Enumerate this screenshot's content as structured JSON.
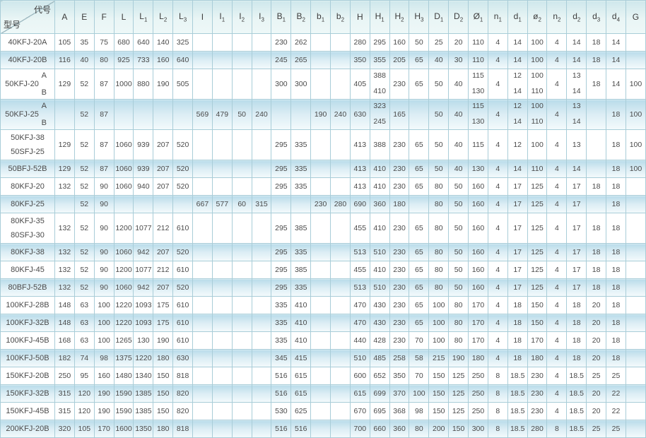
{
  "table": {
    "corner": {
      "top_label": "代号",
      "bottom_label": "型号"
    },
    "columns": [
      {
        "id": "A",
        "b": "A",
        "s": ""
      },
      {
        "id": "E",
        "b": "E",
        "s": ""
      },
      {
        "id": "F",
        "b": "F",
        "s": ""
      },
      {
        "id": "L",
        "b": "L",
        "s": ""
      },
      {
        "id": "L1",
        "b": "L",
        "s": "1"
      },
      {
        "id": "L2",
        "b": "L",
        "s": "2"
      },
      {
        "id": "L3",
        "b": "L",
        "s": "3"
      },
      {
        "id": "I",
        "b": "I",
        "s": ""
      },
      {
        "id": "I1",
        "b": "I",
        "s": "1"
      },
      {
        "id": "I2",
        "b": "I",
        "s": "2"
      },
      {
        "id": "I3",
        "b": "I",
        "s": "3"
      },
      {
        "id": "B1",
        "b": "B",
        "s": "1"
      },
      {
        "id": "B2",
        "b": "B",
        "s": "2"
      },
      {
        "id": "b1",
        "b": "b",
        "s": "1"
      },
      {
        "id": "b2",
        "b": "b",
        "s": "2"
      },
      {
        "id": "H",
        "b": "H",
        "s": ""
      },
      {
        "id": "H1",
        "b": "H",
        "s": "1"
      },
      {
        "id": "H2",
        "b": "H",
        "s": "2"
      },
      {
        "id": "H3",
        "b": "H",
        "s": "3"
      },
      {
        "id": "D1",
        "b": "D",
        "s": "1"
      },
      {
        "id": "D2",
        "b": "D",
        "s": "2"
      },
      {
        "id": "O1",
        "b": "Ø",
        "s": "1"
      },
      {
        "id": "n1",
        "b": "n",
        "s": "1"
      },
      {
        "id": "d1",
        "b": "d",
        "s": "1"
      },
      {
        "id": "o2",
        "b": "ø",
        "s": "2"
      },
      {
        "id": "n2",
        "b": "n",
        "s": "2"
      },
      {
        "id": "d2",
        "b": "d",
        "s": "2"
      },
      {
        "id": "d3",
        "b": "d",
        "s": "3"
      },
      {
        "id": "d4",
        "b": "d",
        "s": "4"
      },
      {
        "id": "G",
        "b": "G",
        "s": ""
      }
    ],
    "rows": [
      {
        "model": [
          "40KFJ-20A"
        ],
        "cells": [
          "105",
          "35",
          "75",
          "680",
          "640",
          "140",
          "325",
          "",
          "",
          "",
          "",
          "230",
          "262",
          "",
          "",
          "280",
          "295",
          "160",
          "50",
          "25",
          "20",
          "110",
          "4",
          "14",
          "100",
          "4",
          "14",
          "18",
          "14",
          ""
        ]
      },
      {
        "model": [
          "40KFJ-20B"
        ],
        "cells": [
          "116",
          "40",
          "80",
          "925",
          "733",
          "160",
          "640",
          "",
          "",
          "",
          "",
          "245",
          "265",
          "",
          "",
          "350",
          "355",
          "205",
          "65",
          "40",
          "30",
          "110",
          "4",
          "14",
          "100",
          "4",
          "14",
          "18",
          "14",
          ""
        ]
      },
      {
        "model": [
          "50KFJ-20"
        ],
        "variant": [
          "A",
          "B"
        ],
        "cells": [
          "129",
          "52",
          "87",
          "1000",
          "880",
          "190",
          "505",
          "",
          "",
          "",
          "",
          "300",
          "300",
          "",
          "",
          "405",
          {
            "top": "388",
            "bot": "410"
          },
          "230",
          "65",
          "50",
          "40",
          {
            "top": "115",
            "bot": "130"
          },
          "4",
          {
            "top": "12",
            "bot": "14"
          },
          {
            "top": "100",
            "bot": "110"
          },
          "4",
          {
            "top": "13",
            "bot": "14"
          },
          "18",
          "14",
          "100"
        ]
      },
      {
        "model": [
          "50KFJ-25"
        ],
        "variant": [
          "A",
          "B"
        ],
        "cells": [
          "",
          "52",
          "87",
          "",
          "",
          "",
          "",
          "569",
          "479",
          "50",
          "240",
          "",
          "",
          "190",
          "240",
          "630",
          {
            "top": "323",
            "bot": "245"
          },
          "165",
          "",
          "50",
          "40",
          {
            "top": "115",
            "bot": "130"
          },
          "4",
          {
            "top": "12",
            "bot": "14"
          },
          {
            "top": "100",
            "bot": "110"
          },
          "4",
          {
            "top": "13",
            "bot": "14"
          },
          "",
          "18",
          "100"
        ]
      },
      {
        "model": [
          "50KFJ-38",
          "50SFJ-25"
        ],
        "cells": [
          "129",
          "52",
          "87",
          "1060",
          "939",
          "207",
          "520",
          "",
          "",
          "",
          "",
          "295",
          "335",
          "",
          "",
          "413",
          "388",
          "230",
          "65",
          "50",
          "40",
          "115",
          "4",
          "12",
          "100",
          "4",
          "13",
          "",
          "18",
          "100"
        ]
      },
      {
        "model": [
          "50BFJ-52B"
        ],
        "cells": [
          "129",
          "52",
          "87",
          "1060",
          "939",
          "207",
          "520",
          "",
          "",
          "",
          "",
          "295",
          "335",
          "",
          "",
          "413",
          "410",
          "230",
          "65",
          "50",
          "40",
          "130",
          "4",
          "14",
          "110",
          "4",
          "14",
          "",
          "18",
          "100"
        ]
      },
      {
        "model": [
          "80KFJ-20"
        ],
        "cells": [
          "132",
          "52",
          "90",
          "1060",
          "940",
          "207",
          "520",
          "",
          "",
          "",
          "",
          "295",
          "335",
          "",
          "",
          "413",
          "410",
          "230",
          "65",
          "80",
          "50",
          "160",
          "4",
          "17",
          "125",
          "4",
          "17",
          "18",
          "18",
          ""
        ]
      },
      {
        "model": [
          "80KFJ-25"
        ],
        "cells": [
          "",
          "52",
          "90",
          "",
          "",
          "",
          "",
          "667",
          "577",
          "60",
          "315",
          "",
          "",
          "230",
          "280",
          "690",
          "360",
          "180",
          "",
          "80",
          "50",
          "160",
          "4",
          "17",
          "125",
          "4",
          "17",
          "",
          "18",
          ""
        ]
      },
      {
        "model": [
          "80KFJ-35",
          "80SFJ-30"
        ],
        "cells": [
          "132",
          "52",
          "90",
          "1200",
          "1077",
          "212",
          "610",
          "",
          "",
          "",
          "",
          "295",
          "385",
          "",
          "",
          "455",
          "410",
          "230",
          "65",
          "80",
          "50",
          "160",
          "4",
          "17",
          "125",
          "4",
          "17",
          "18",
          "18",
          ""
        ]
      },
      {
        "model": [
          "80KFJ-38"
        ],
        "cells": [
          "132",
          "52",
          "90",
          "1060",
          "942",
          "207",
          "520",
          "",
          "",
          "",
          "",
          "295",
          "335",
          "",
          "",
          "513",
          "510",
          "230",
          "65",
          "80",
          "50",
          "160",
          "4",
          "17",
          "125",
          "4",
          "17",
          "18",
          "18",
          ""
        ]
      },
      {
        "model": [
          "80KFJ-45"
        ],
        "cells": [
          "132",
          "52",
          "90",
          "1200",
          "1077",
          "212",
          "610",
          "",
          "",
          "",
          "",
          "295",
          "385",
          "",
          "",
          "455",
          "410",
          "230",
          "65",
          "80",
          "50",
          "160",
          "4",
          "17",
          "125",
          "4",
          "17",
          "18",
          "18",
          ""
        ]
      },
      {
        "model": [
          "80BFJ-52B"
        ],
        "cells": [
          "132",
          "52",
          "90",
          "1060",
          "942",
          "207",
          "520",
          "",
          "",
          "",
          "",
          "295",
          "335",
          "",
          "",
          "513",
          "510",
          "230",
          "65",
          "80",
          "50",
          "160",
          "4",
          "17",
          "125",
          "4",
          "17",
          "18",
          "18",
          ""
        ]
      },
      {
        "model": [
          "100KFJ-28B"
        ],
        "cells": [
          "148",
          "63",
          "100",
          "1220",
          "1093",
          "175",
          "610",
          "",
          "",
          "",
          "",
          "335",
          "410",
          "",
          "",
          "470",
          "430",
          "230",
          "65",
          "100",
          "80",
          "170",
          "4",
          "18",
          "150",
          "4",
          "18",
          "20",
          "18",
          ""
        ]
      },
      {
        "model": [
          "100KFJ-32B"
        ],
        "cells": [
          "148",
          "63",
          "100",
          "1220",
          "1093",
          "175",
          "610",
          "",
          "",
          "",
          "",
          "335",
          "410",
          "",
          "",
          "470",
          "430",
          "230",
          "65",
          "100",
          "80",
          "170",
          "4",
          "18",
          "150",
          "4",
          "18",
          "20",
          "18",
          ""
        ]
      },
      {
        "model": [
          "100KFJ-45B"
        ],
        "cells": [
          "168",
          "63",
          "100",
          "1265",
          "130",
          "190",
          "610",
          "",
          "",
          "",
          "",
          "335",
          "410",
          "",
          "",
          "440",
          "428",
          "230",
          "70",
          "100",
          "80",
          "170",
          "4",
          "18",
          "170",
          "4",
          "18",
          "20",
          "18",
          ""
        ]
      },
      {
        "model": [
          "100KFJ-50B"
        ],
        "cells": [
          "182",
          "74",
          "98",
          "1375",
          "1220",
          "180",
          "630",
          "",
          "",
          "",
          "",
          "345",
          "415",
          "",
          "",
          "510",
          "485",
          "258",
          "58",
          "215",
          "190",
          "180",
          "4",
          "18",
          "180",
          "4",
          "18",
          "20",
          "18",
          ""
        ]
      },
      {
        "model": [
          "150KFJ-20B"
        ],
        "cells": [
          "250",
          "95",
          "160",
          "1480",
          "1340",
          "150",
          "818",
          "",
          "",
          "",
          "",
          "516",
          "615",
          "",
          "",
          "600",
          "652",
          "350",
          "70",
          "150",
          "125",
          "250",
          "8",
          "18.5",
          "230",
          "4",
          "18.5",
          "25",
          "25",
          ""
        ]
      },
      {
        "model": [
          "150KFJ-32B"
        ],
        "cells": [
          "315",
          "120",
          "190",
          "1590",
          "1385",
          "150",
          "820",
          "",
          "",
          "",
          "",
          "516",
          "615",
          "",
          "",
          "615",
          "699",
          "370",
          "100",
          "150",
          "125",
          "250",
          "8",
          "18.5",
          "230",
          "4",
          "18.5",
          "20",
          "22",
          ""
        ]
      },
      {
        "model": [
          "150KFJ-45B"
        ],
        "cells": [
          "315",
          "120",
          "190",
          "1590",
          "1385",
          "150",
          "820",
          "",
          "",
          "",
          "",
          "530",
          "625",
          "",
          "",
          "670",
          "695",
          "368",
          "98",
          "150",
          "125",
          "250",
          "8",
          "18.5",
          "230",
          "4",
          "18.5",
          "20",
          "22",
          ""
        ]
      },
      {
        "model": [
          "200KFJ-20B"
        ],
        "cells": [
          "320",
          "105",
          "170",
          "1600",
          "1350",
          "180",
          "818",
          "",
          "",
          "",
          "",
          "516",
          "516",
          "",
          "",
          "700",
          "660",
          "360",
          "80",
          "200",
          "150",
          "300",
          "8",
          "18.5",
          "280",
          "8",
          "18.5",
          "25",
          "25",
          ""
        ]
      }
    ]
  },
  "colors": {
    "grid_line": "#a9cdd8",
    "header_top": "#cfe8ec",
    "stripe_top": "#b9dcea",
    "stripe_bottom": "#f3fafc",
    "text": "#4a4a4a"
  }
}
